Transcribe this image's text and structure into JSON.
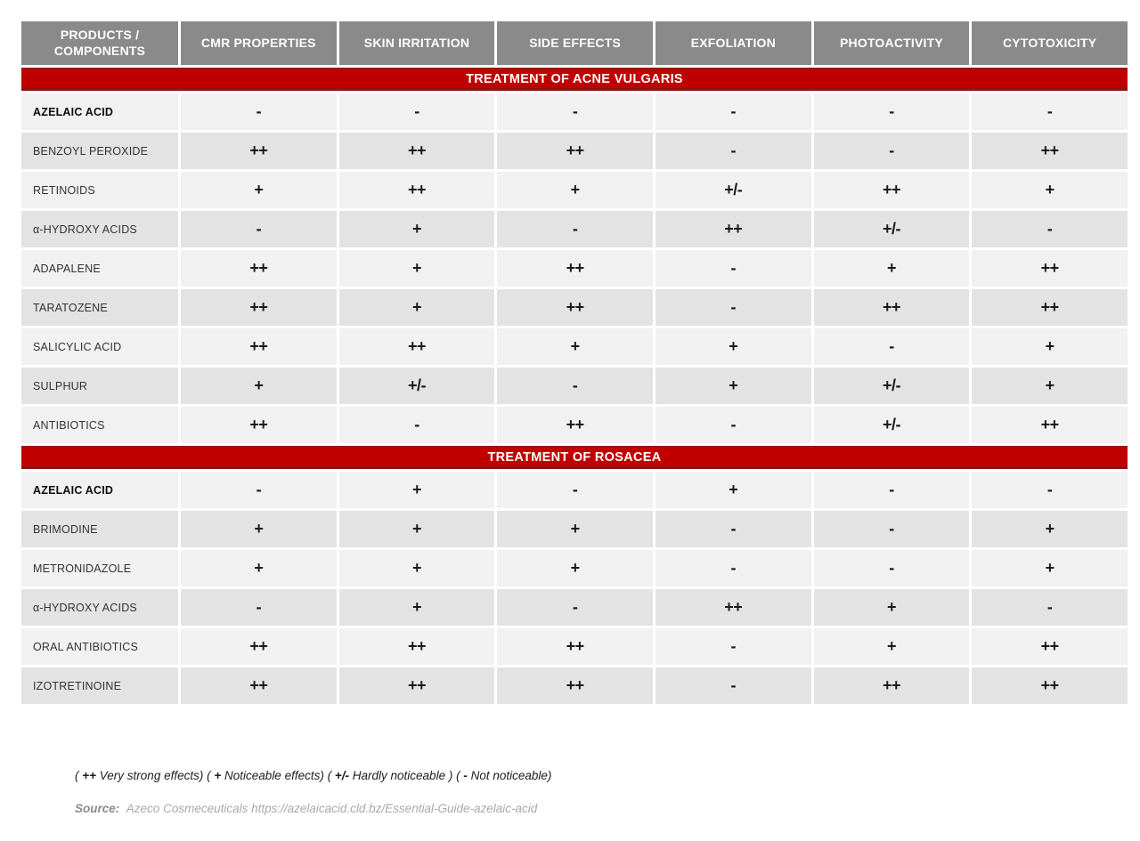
{
  "chart_data": {
    "type": "table",
    "columns": [
      "PRODUCTS / COMPONENTS",
      "CMR PROPERTIES",
      "SKIN IRRITATION",
      "SIDE EFFECTS",
      "EXFOLIATION",
      "PHOTOACTIVITY",
      "CYTOTOXICITY"
    ],
    "sections": [
      {
        "title": "TREATMENT OF ACNE VULGARIS",
        "rows": [
          {
            "product": "AZELAIC ACID",
            "emphasis": true,
            "values": [
              "-",
              "-",
              "-",
              "-",
              "-",
              "-"
            ]
          },
          {
            "product": "BENZOYL PEROXIDE",
            "emphasis": false,
            "values": [
              "++",
              "++",
              "++",
              "-",
              "-",
              "++"
            ]
          },
          {
            "product": "RETINOIDS",
            "emphasis": false,
            "values": [
              "+",
              "++",
              "+",
              "+/-",
              "++",
              "+"
            ]
          },
          {
            "product": "α-HYDROXY ACIDS",
            "emphasis": false,
            "values": [
              "-",
              "+",
              "-",
              "++",
              "+/-",
              "-"
            ]
          },
          {
            "product": "ADAPALENE",
            "emphasis": false,
            "values": [
              "++",
              "+",
              "++",
              "-",
              "+",
              "++"
            ]
          },
          {
            "product": "TARATOZENE",
            "emphasis": false,
            "values": [
              "++",
              "+",
              "++",
              "-",
              "++",
              "++"
            ]
          },
          {
            "product": "SALICYLIC ACID",
            "emphasis": false,
            "values": [
              "++",
              "++",
              "+",
              "+",
              "-",
              "+"
            ]
          },
          {
            "product": "SULPHUR",
            "emphasis": false,
            "values": [
              "+",
              "+/-",
              "-",
              "+",
              "+/-",
              "+"
            ]
          },
          {
            "product": "ANTIBIOTICS",
            "emphasis": false,
            "values": [
              "++",
              "-",
              "++",
              "-",
              "+/-",
              "++"
            ]
          }
        ]
      },
      {
        "title": "TREATMENT OF ROSACEA",
        "rows": [
          {
            "product": "AZELAIC ACID",
            "emphasis": true,
            "values": [
              "-",
              "+",
              "-",
              "+",
              "-",
              "-"
            ]
          },
          {
            "product": "BRIMODINE",
            "emphasis": false,
            "values": [
              "+",
              "+",
              "+",
              "-",
              "-",
              "+"
            ]
          },
          {
            "product": "METRONIDAZOLE",
            "emphasis": false,
            "values": [
              "+",
              "+",
              "+",
              "-",
              "-",
              "+"
            ]
          },
          {
            "product": "α-HYDROXY ACIDS",
            "emphasis": false,
            "values": [
              "-",
              "+",
              "-",
              "++",
              "+",
              "-"
            ]
          },
          {
            "product": "ORAL ANTIBIOTICS",
            "emphasis": false,
            "values": [
              "++",
              "++",
              "++",
              "-",
              "+",
              "++"
            ]
          },
          {
            "product": "IZOTRETINOINE",
            "emphasis": false,
            "values": [
              "++",
              "++",
              "++",
              "-",
              "++",
              "++"
            ]
          }
        ]
      }
    ],
    "legend": {
      "raw": "( ++ Very strong effects) ( + Noticeable effects) ( +/- Hardly noticeable ) ( - Not noticeable)",
      "items": [
        {
          "symbol": "++",
          "meaning": "Very strong effects"
        },
        {
          "symbol": "+",
          "meaning": "Noticeable effects"
        },
        {
          "symbol": "+/-",
          "meaning": "Hardly noticeable "
        },
        {
          "symbol": "-",
          "meaning": "Not noticeable"
        }
      ]
    },
    "source": {
      "label": "Source:",
      "text": "Azeco Cosmeceuticals https://azelaicacid.cld.bz/Essential-Guide-azelaic-acid"
    }
  },
  "colors": {
    "header_bg": "#8a8a8a",
    "header_text": "#ffffff",
    "section_bg": "#c00000",
    "section_border": "#8a1512",
    "section_text": "#ffffff",
    "row_light": "#f1f1f1",
    "row_dark": "#e3e3e3",
    "value_text": "#1a1a1a",
    "source_label": "#8b8b8b",
    "source_text": "#a9a9a9"
  }
}
